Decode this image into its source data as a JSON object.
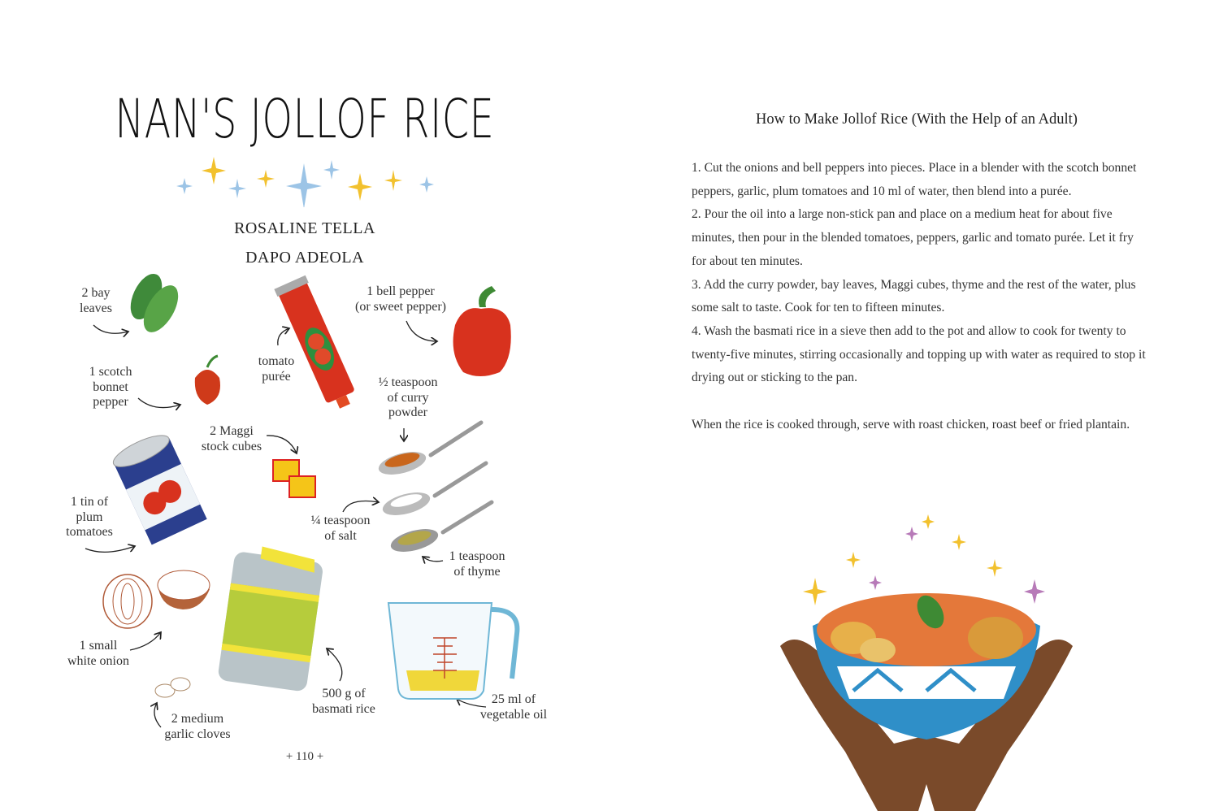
{
  "left_page": {
    "title": "NAN'S JOLLOF RICE",
    "authors": [
      "ROSALINE TELLA",
      "DAPO ADEOLA"
    ],
    "ingredients": {
      "bay_leaves": [
        "2 bay",
        "leaves"
      ],
      "tomato_puree": [
        "tomato",
        "purée"
      ],
      "bell_pepper": [
        "1 bell pepper",
        "(or sweet pepper)"
      ],
      "scotch_bonnet": [
        "1 scotch",
        "bonnet",
        "pepper"
      ],
      "curry_powder": [
        "½ teaspoon",
        "of curry",
        "powder"
      ],
      "maggi": [
        "2 Maggi",
        "stock cubes"
      ],
      "tomatoes": [
        "1 tin of",
        "plum",
        "tomatoes"
      ],
      "salt": [
        "¼ teaspoon",
        "of salt"
      ],
      "thyme": [
        "1 teaspoon",
        "of thyme"
      ],
      "onion": [
        "1 small",
        "white onion"
      ],
      "garlic": [
        "2 medium",
        "garlic cloves"
      ],
      "rice": [
        "500 g of",
        "basmati rice"
      ],
      "oil": [
        "25 ml of",
        "vegetable oil"
      ]
    },
    "page_number": "+ 110 +"
  },
  "right_page": {
    "title": "How to Make Jollof Rice (With the Help of an Adult)",
    "steps": [
      "1.  Cut the onions and bell peppers into pieces. Place in a blender with the scotch bonnet peppers, garlic, plum tomatoes and 10 ml of water, then blend into a purée.",
      "2.  Pour the oil into a large non-stick pan and place on a medium heat for about five minutes, then pour in the blended tomatoes, peppers, garlic and tomato purée. Let it fry for about ten minutes.",
      "3.  Add the curry powder, bay leaves, Maggi cubes, thyme and the rest of the water, plus some salt to taste. Cook for ten to fifteen minutes.",
      "4.  Wash the basmati rice in a sieve then add to the pot and allow to cook for twenty to twenty-five minutes, stirring occasionally and topping up with water as required to stop it drying out or sticking to the pan."
    ],
    "serving": "When the rice is cooked through, serve with roast chicken, roast beef or fried plantain."
  },
  "colors": {
    "gold_star": "#f2c12e",
    "blue_star": "#9cc4e6",
    "pepper_red": "#d8321e",
    "bowl_blue": "#2f8fc8",
    "skin": "#7a4a2a"
  }
}
